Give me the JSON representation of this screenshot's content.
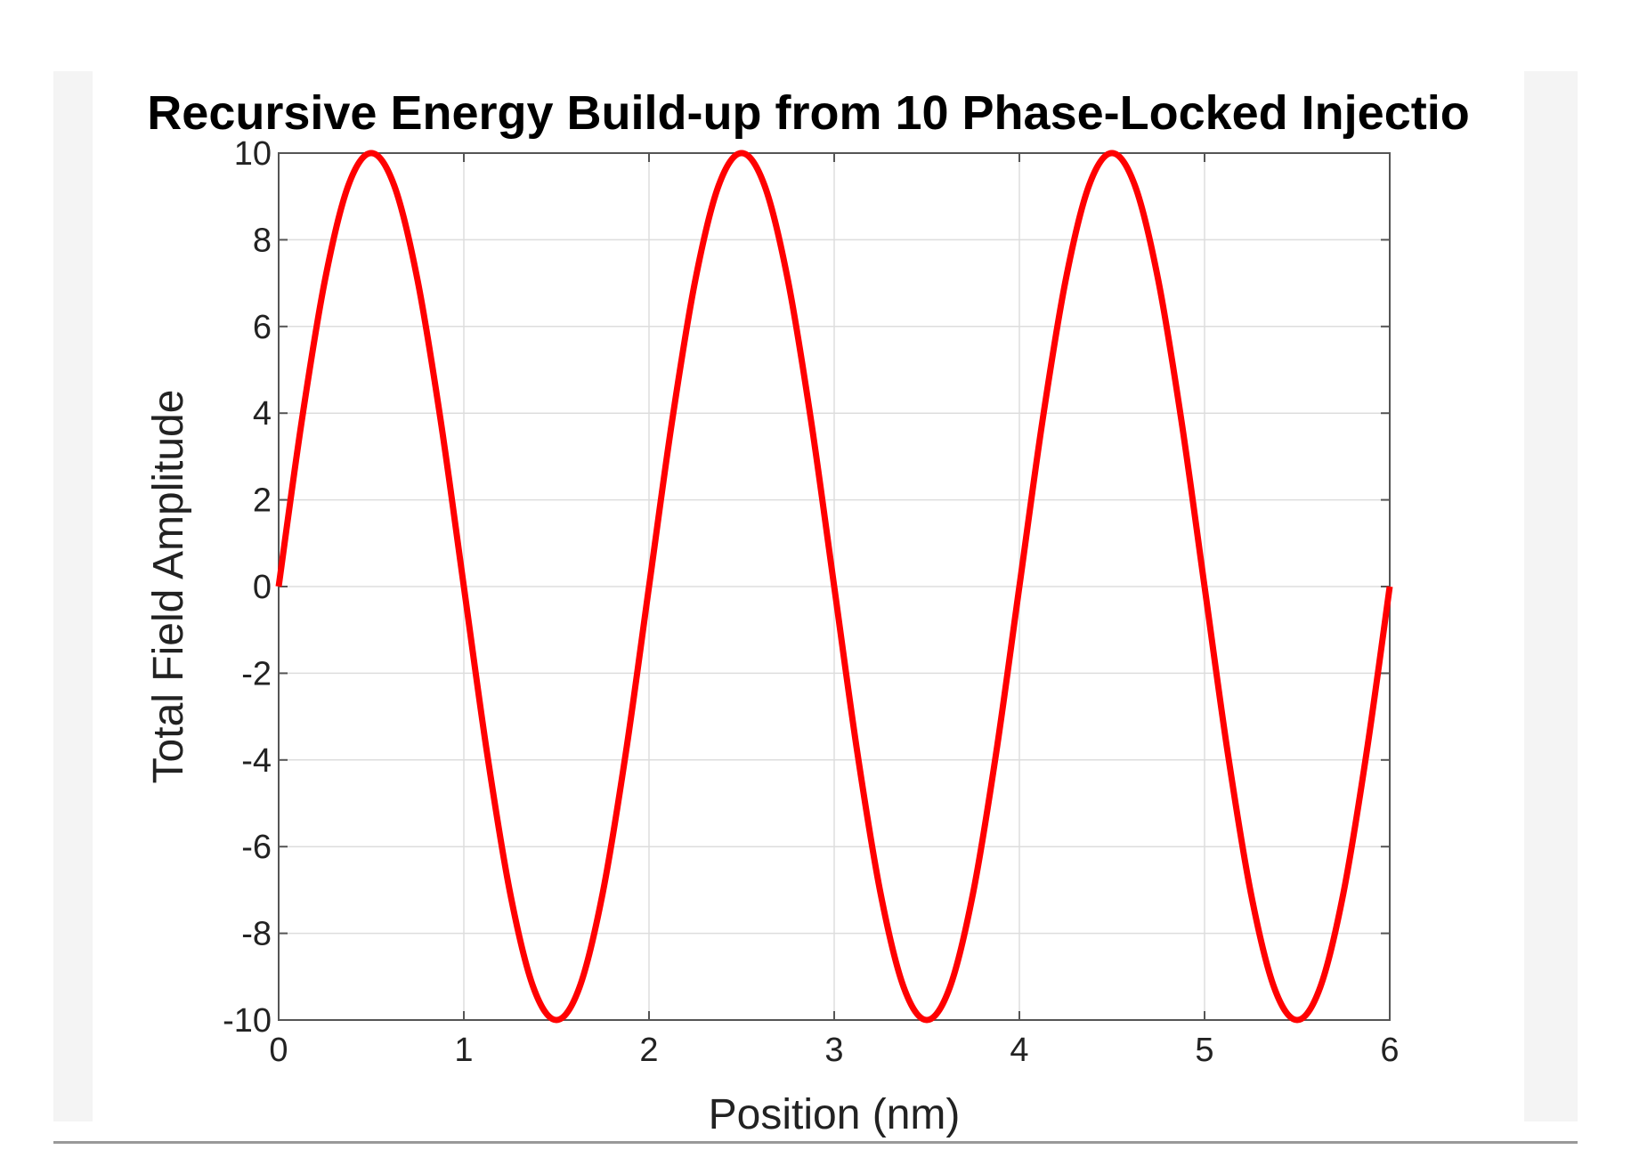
{
  "chart_data": {
    "type": "line",
    "title": "Recursive Energy Build-up from 10 Phase-Locked Injectio",
    "xlabel": "Position (nm)",
    "ylabel": "Total Field Amplitude",
    "xlim": [
      0,
      6
    ],
    "ylim": [
      -10,
      10
    ],
    "x_ticks": [
      0,
      1,
      2,
      3,
      4,
      5,
      6
    ],
    "y_ticks": [
      10,
      8,
      6,
      4,
      2,
      0,
      -2,
      -4,
      -6,
      -8,
      -10
    ],
    "grid": true,
    "series": [
      {
        "name": "Total Field Amplitude",
        "color": "#ff0000",
        "x": [
          0,
          0.125,
          0.25,
          0.375,
          0.5,
          0.625,
          0.75,
          0.875,
          1.0,
          1.125,
          1.25,
          1.375,
          1.5,
          1.625,
          1.75,
          1.875,
          2.0,
          2.125,
          2.25,
          2.375,
          2.5,
          2.625,
          2.75,
          2.875,
          3.0,
          3.125,
          3.25,
          3.375,
          3.5,
          3.625,
          3.75,
          3.875,
          4.0,
          4.125,
          4.25,
          4.375,
          4.5,
          4.625,
          4.75,
          4.875,
          5.0,
          5.125,
          5.25,
          5.375,
          5.5,
          5.625,
          5.75,
          5.875,
          6.0
        ],
        "y": [
          0,
          3.83,
          7.07,
          9.24,
          10,
          9.24,
          7.07,
          3.83,
          0,
          -3.83,
          -7.07,
          -9.24,
          -10,
          -9.24,
          -7.07,
          -3.83,
          0,
          3.83,
          7.07,
          9.24,
          10,
          9.24,
          7.07,
          3.83,
          0,
          -3.83,
          -7.07,
          -9.24,
          -10,
          -9.24,
          -7.07,
          -3.83,
          0,
          3.83,
          7.07,
          9.24,
          10,
          9.24,
          7.07,
          3.83,
          0,
          -3.83,
          -7.07,
          -9.24,
          -10,
          -9.24,
          -7.07,
          -3.83,
          0
        ]
      }
    ]
  }
}
